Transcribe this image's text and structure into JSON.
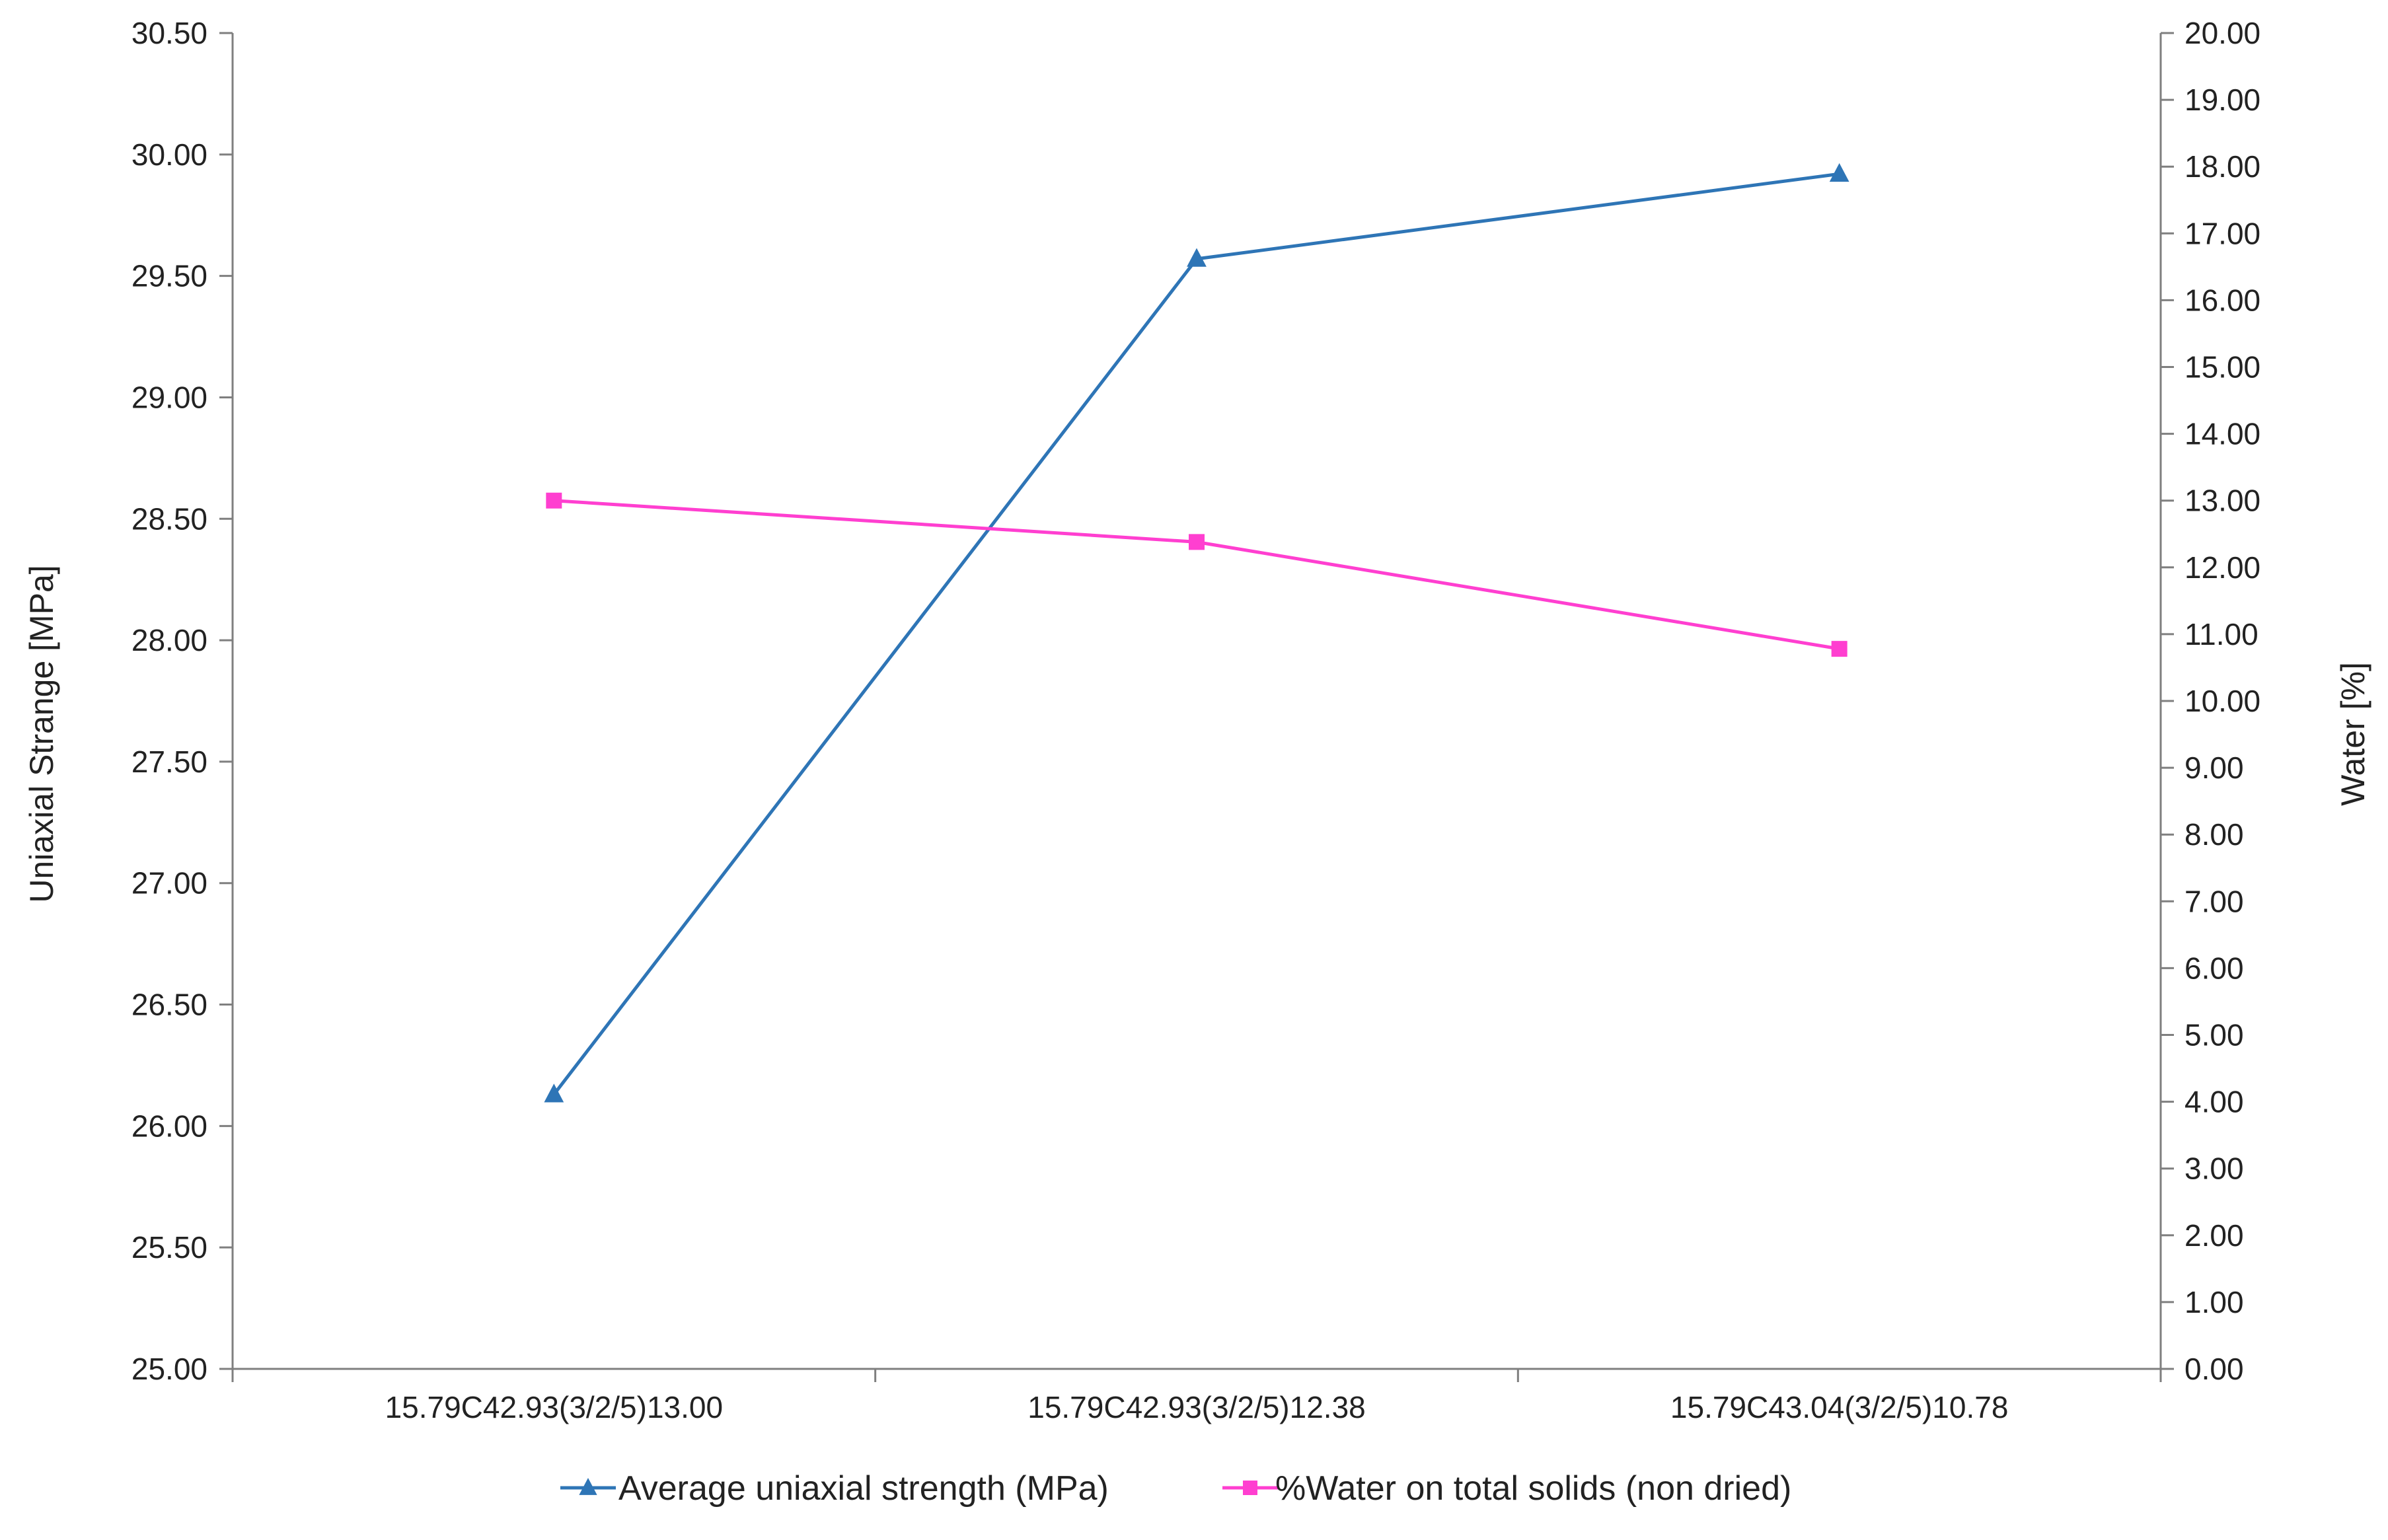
{
  "chart_data": {
    "type": "line",
    "title": "",
    "categories": [
      "15.79C42.93(3/2/5)13.00",
      "15.79C42.93(3/2/5)12.38",
      "15.79C43.04(3/2/5)10.78"
    ],
    "y_left": {
      "label": "Uniaxial Strange [MPa]",
      "range": [
        25.0,
        30.5
      ],
      "step": 0.5,
      "ticks": [
        "25.00",
        "25.50",
        "26.00",
        "26.50",
        "27.00",
        "27.50",
        "28.00",
        "28.50",
        "29.00",
        "29.50",
        "30.00",
        "30.50"
      ]
    },
    "y_right": {
      "label": "Water [%]",
      "range": [
        0.0,
        20.0
      ],
      "step": 1.0,
      "ticks": [
        "0.00",
        "1.00",
        "2.00",
        "3.00",
        "4.00",
        "5.00",
        "6.00",
        "7.00",
        "8.00",
        "9.00",
        "10.00",
        "11.00",
        "12.00",
        "13.00",
        "14.00",
        "15.00",
        "16.00",
        "17.00",
        "18.00",
        "19.00",
        "20.00"
      ]
    },
    "series": [
      {
        "name": "Average uniaxial strength (MPa)",
        "axis": "left",
        "color": "#2E75B6",
        "marker": "triangle",
        "values": [
          26.13,
          29.57,
          29.92
        ]
      },
      {
        "name": "%Water on total solids (non dried)",
        "axis": "right",
        "color": "#FF3FD0",
        "marker": "square",
        "values": [
          13.0,
          12.38,
          10.78
        ]
      }
    ],
    "grid": false,
    "legend_position": "bottom"
  }
}
